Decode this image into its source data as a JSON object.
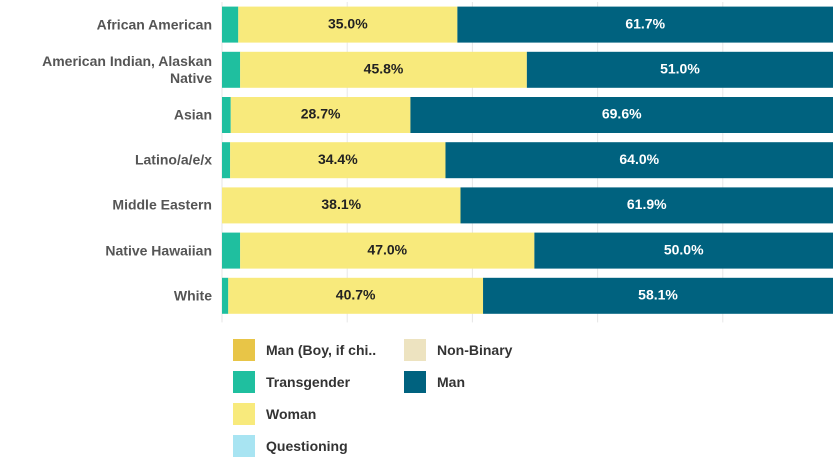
{
  "chart_data": {
    "type": "stacked-bar",
    "orientation": "horizontal",
    "categories": [
      "African American",
      "American Indian, Alaskan Native",
      "Asian",
      "Latino/a/e/x",
      "Middle Eastern",
      "Native Hawaiian",
      "White"
    ],
    "series": [
      {
        "name": "Man (Boy, if chi..",
        "color": "#e8c547",
        "values": [
          0,
          0,
          0,
          0,
          0,
          0,
          0
        ]
      },
      {
        "name": "Transgender",
        "color": "#1fbf9f",
        "values": [
          2.6,
          2.9,
          1.4,
          1.3,
          0,
          2.9,
          1.0
        ]
      },
      {
        "name": "Woman",
        "color": "#f8ea7c",
        "values": [
          35.0,
          45.8,
          28.7,
          34.4,
          38.1,
          47.0,
          40.7
        ],
        "value_labels": [
          "35.0%",
          "45.8%",
          "28.7%",
          "34.4%",
          "38.1%",
          "47.0%",
          "40.7%"
        ],
        "label_color": "#222"
      },
      {
        "name": "Questioning",
        "color": "#a8e4f2",
        "values": [
          0,
          0,
          0,
          0,
          0,
          0,
          0
        ]
      },
      {
        "name": "Non-Binary",
        "color": "#ede3c0",
        "values": [
          0,
          0,
          0,
          0,
          0,
          0,
          0
        ]
      },
      {
        "name": "Man",
        "color": "#00627f",
        "values": [
          61.7,
          51.0,
          69.6,
          64.0,
          61.9,
          50.0,
          58.1
        ],
        "value_labels": [
          "61.7%",
          "51.0%",
          "69.6%",
          "64.0%",
          "61.9%",
          "50.0%",
          "58.1%"
        ],
        "label_color": "#ffffff"
      }
    ],
    "xlim": [
      0,
      100
    ],
    "xticks": [
      0,
      20,
      40,
      60,
      80,
      100
    ],
    "grid": true
  }
}
